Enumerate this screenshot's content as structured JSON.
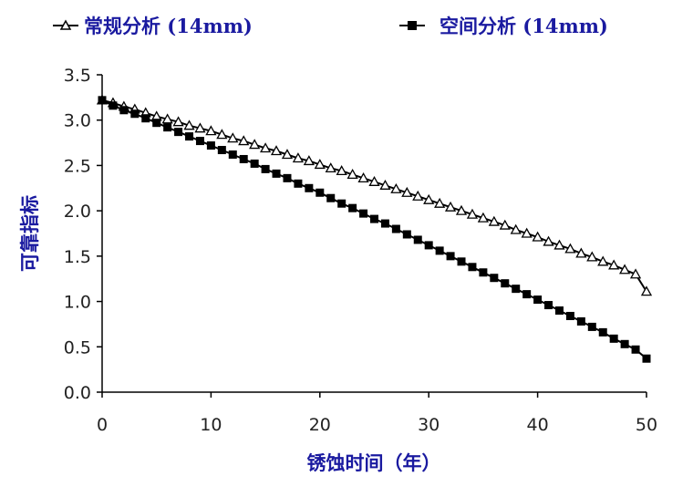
{
  "chart_data": {
    "type": "line",
    "xlabel": "锈蚀时间（年）",
    "ylabel": "可靠指标",
    "xlim": [
      0,
      50
    ],
    "ylim": [
      0,
      3.5
    ],
    "x_ticks": [
      "0",
      "10",
      "20",
      "30",
      "40",
      "50"
    ],
    "y_ticks": [
      "0.0",
      "0.5",
      "1.0",
      "1.5",
      "2.0",
      "2.5",
      "3.0",
      "3.5"
    ],
    "legend_position": "top",
    "grid": false,
    "series": [
      {
        "name": "常规分析 (14mm)",
        "marker": "triangle",
        "color": "#000000",
        "x": [
          0,
          1,
          2,
          3,
          4,
          5,
          6,
          7,
          8,
          9,
          10,
          11,
          12,
          13,
          14,
          15,
          16,
          17,
          18,
          19,
          20,
          21,
          22,
          23,
          24,
          25,
          26,
          27,
          28,
          29,
          30,
          31,
          32,
          33,
          34,
          35,
          36,
          37,
          38,
          39,
          40,
          41,
          42,
          43,
          44,
          45,
          46,
          47,
          48,
          49,
          50
        ],
        "y": [
          3.22,
          3.19,
          3.15,
          3.12,
          3.08,
          3.04,
          3.01,
          2.98,
          2.94,
          2.91,
          2.88,
          2.84,
          2.8,
          2.77,
          2.73,
          2.69,
          2.66,
          2.62,
          2.58,
          2.55,
          2.51,
          2.47,
          2.44,
          2.4,
          2.36,
          2.32,
          2.28,
          2.24,
          2.2,
          2.16,
          2.12,
          2.08,
          2.04,
          2.0,
          1.96,
          1.92,
          1.88,
          1.84,
          1.79,
          1.75,
          1.71,
          1.66,
          1.62,
          1.58,
          1.53,
          1.49,
          1.44,
          1.4,
          1.35,
          1.3,
          1.11
        ]
      },
      {
        "name": "空间分析 (14mm)",
        "marker": "square",
        "color": "#000000",
        "x": [
          0,
          1,
          2,
          3,
          4,
          5,
          6,
          7,
          8,
          9,
          10,
          11,
          12,
          13,
          14,
          15,
          16,
          17,
          18,
          19,
          20,
          21,
          22,
          23,
          24,
          25,
          26,
          27,
          28,
          29,
          30,
          31,
          32,
          33,
          34,
          35,
          36,
          37,
          38,
          39,
          40,
          41,
          42,
          43,
          44,
          45,
          46,
          47,
          48,
          49,
          50
        ],
        "y": [
          3.22,
          3.16,
          3.11,
          3.07,
          3.02,
          2.97,
          2.92,
          2.87,
          2.82,
          2.77,
          2.72,
          2.67,
          2.62,
          2.57,
          2.52,
          2.46,
          2.41,
          2.36,
          2.3,
          2.25,
          2.2,
          2.14,
          2.08,
          2.03,
          1.97,
          1.91,
          1.86,
          1.8,
          1.74,
          1.68,
          1.62,
          1.56,
          1.5,
          1.44,
          1.38,
          1.32,
          1.26,
          1.2,
          1.14,
          1.08,
          1.02,
          0.96,
          0.9,
          0.84,
          0.78,
          0.72,
          0.66,
          0.59,
          0.53,
          0.47,
          0.37
        ]
      }
    ]
  }
}
